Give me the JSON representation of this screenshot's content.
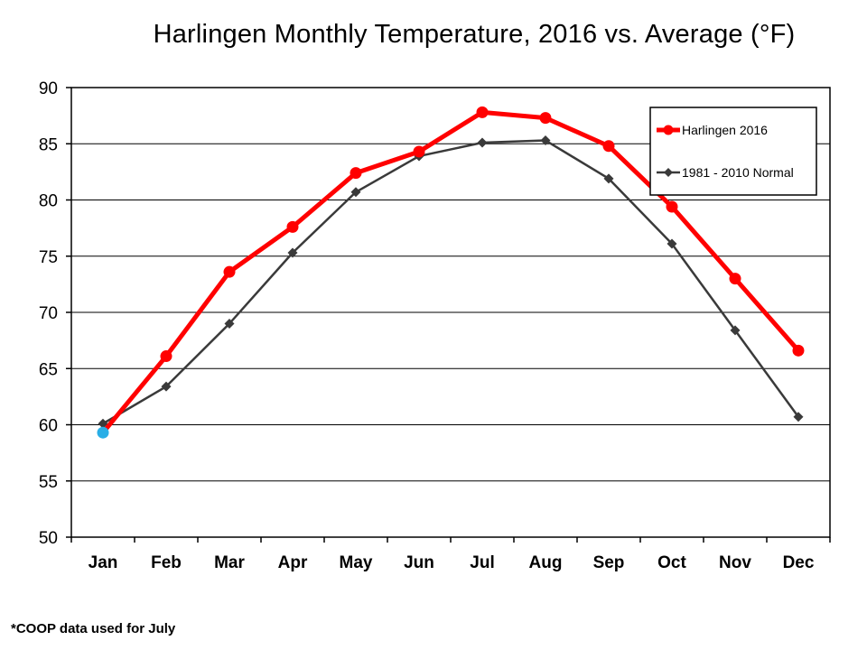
{
  "chart_data": {
    "type": "line",
    "title": "Harlingen Monthly Temperature, 2016 vs. Average (°F)",
    "xlabel": "",
    "ylabel": "",
    "categories": [
      "Jan",
      "Feb",
      "Mar",
      "Apr",
      "May",
      "Jun",
      "Jul",
      "Aug",
      "Sep",
      "Oct",
      "Nov",
      "Dec"
    ],
    "ylim": [
      50,
      90
    ],
    "yticks": [
      "50",
      "55",
      "60",
      "65",
      "70",
      "75",
      "80",
      "85",
      "90"
    ],
    "grid": true,
    "legend_position": "top-right",
    "series": [
      {
        "name": "Harlingen 2016",
        "color": "#ff0000",
        "marker": "circle",
        "values": [
          59.3,
          66.1,
          73.6,
          77.6,
          82.4,
          84.3,
          87.8,
          87.3,
          84.8,
          79.4,
          73.0,
          66.6
        ],
        "highlight_points": [
          {
            "index": 0,
            "color": "#29aee6"
          }
        ]
      },
      {
        "name": "1981 - 2010 Normal",
        "color": "#3a3a3a",
        "marker": "diamond",
        "values": [
          60.1,
          63.4,
          69.0,
          75.3,
          80.7,
          83.9,
          85.1,
          85.3,
          81.9,
          76.1,
          68.4,
          60.7
        ]
      }
    ]
  },
  "footnote": "*COOP data used for July"
}
